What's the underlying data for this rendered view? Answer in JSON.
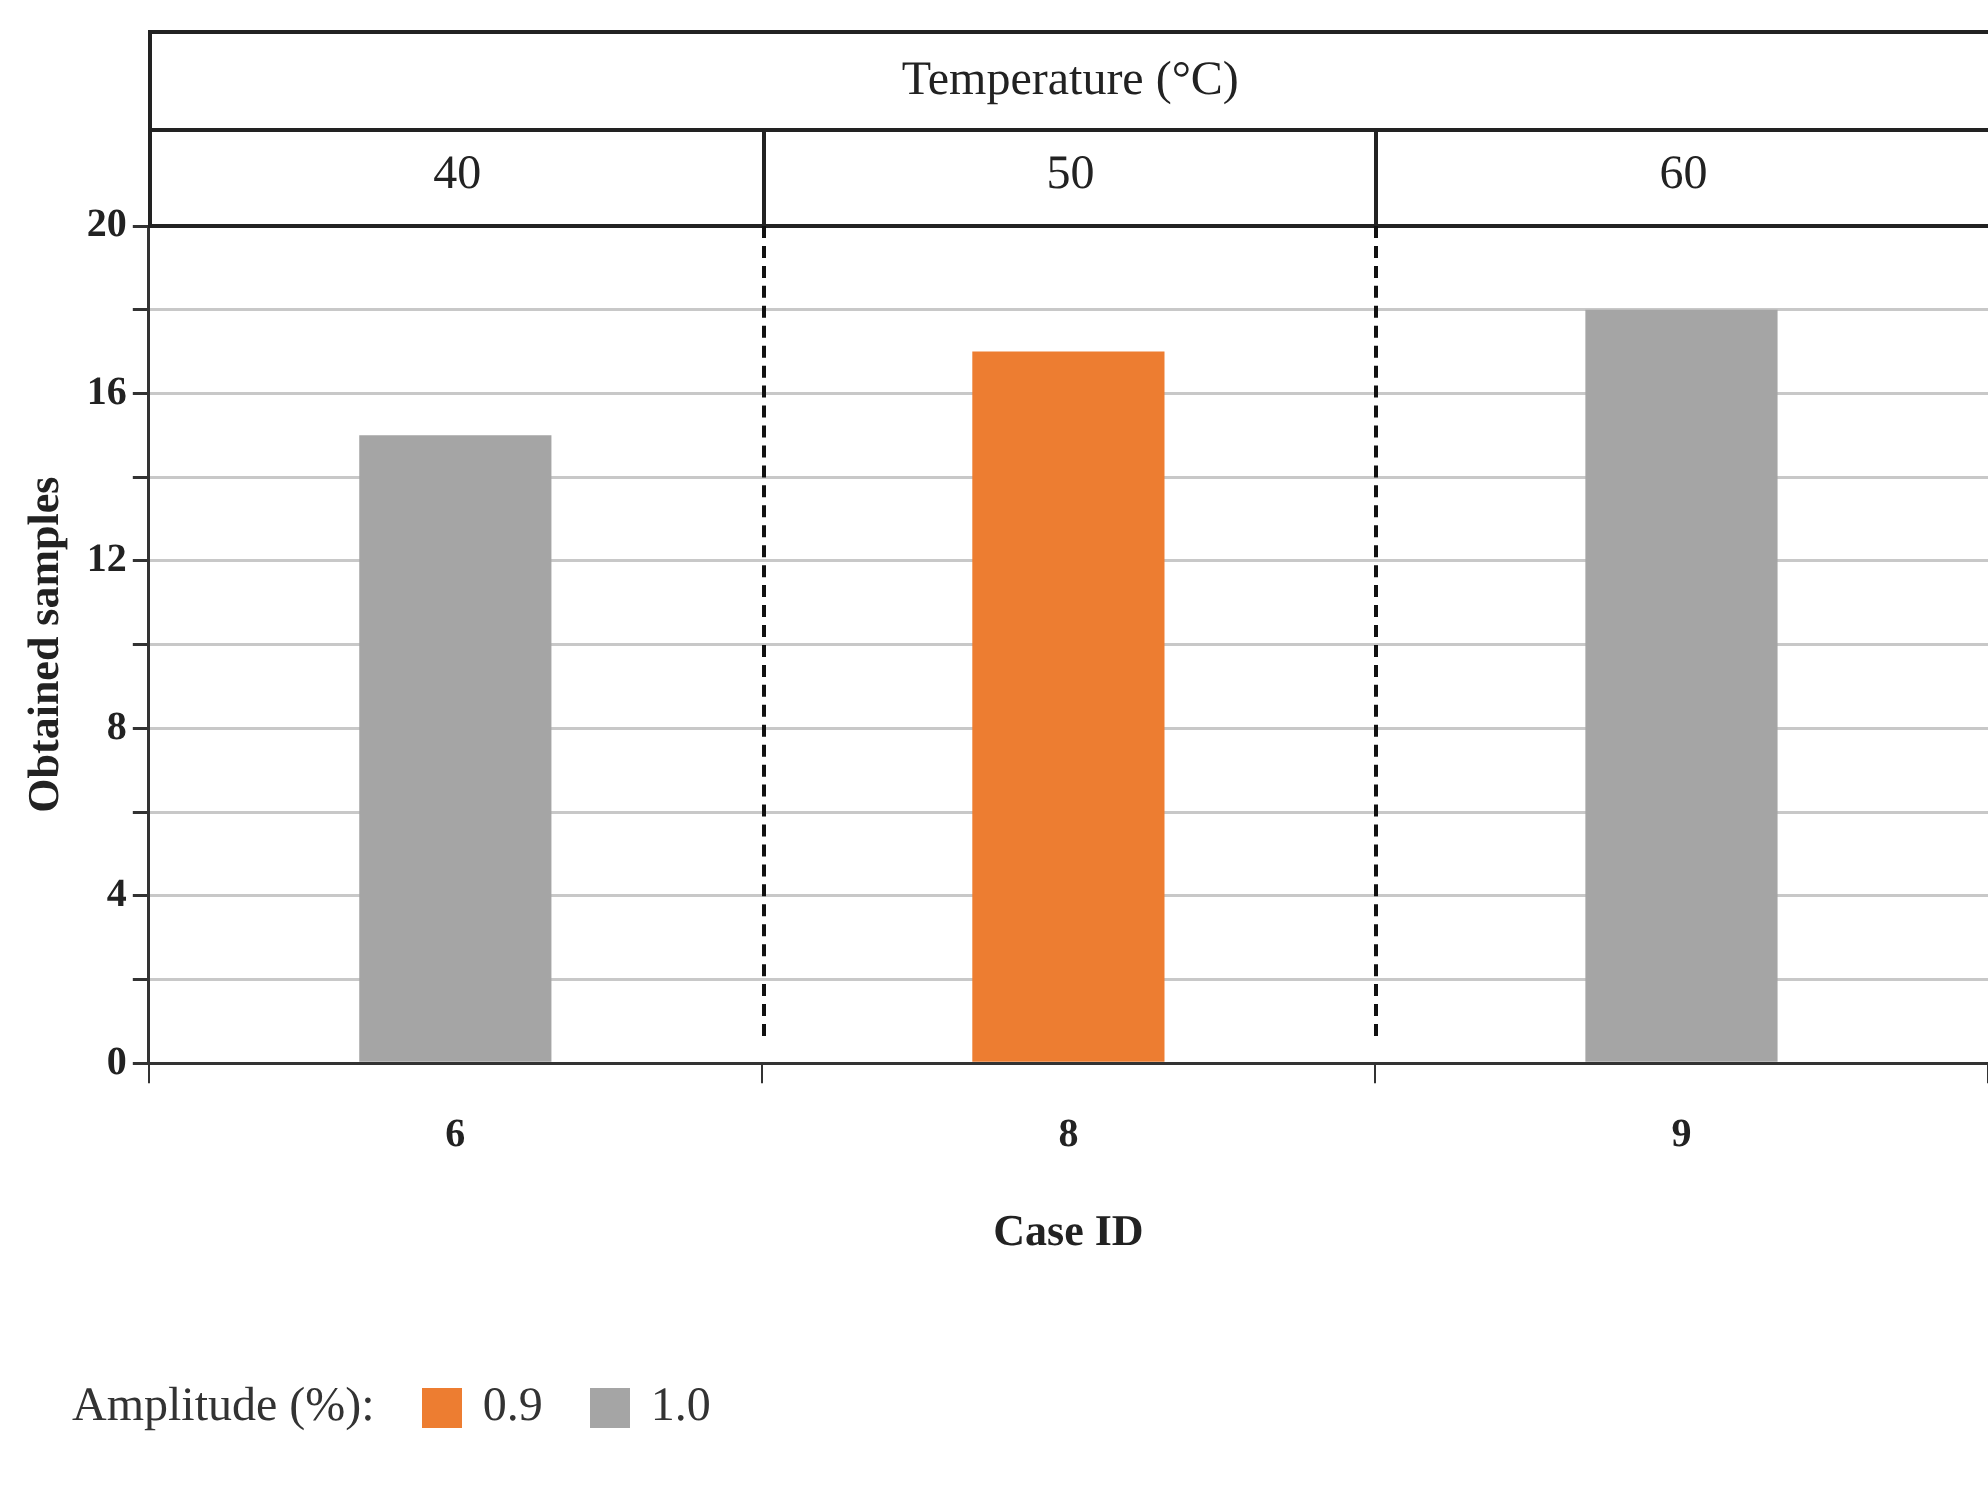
{
  "chart_data": {
    "type": "bar",
    "xlabel": "Case ID",
    "ylabel": "Obtained samples",
    "categories": [
      "6",
      "8",
      "9"
    ],
    "series": [
      {
        "name": "0.9",
        "color": "#ed7d31",
        "values": [
          null,
          17,
          null
        ]
      },
      {
        "name": "1.0",
        "color": "#a5a5a5",
        "values": [
          15,
          null,
          18
        ]
      }
    ],
    "ylim": [
      0,
      20
    ],
    "yticks": [
      0,
      {
        "value": 2,
        "label": null
      },
      4,
      {
        "value": 6,
        "label": null
      },
      8,
      {
        "value": 10,
        "label": null
      },
      12,
      {
        "value": 14,
        "label": null
      },
      16,
      {
        "value": 18,
        "label": null
      },
      20
    ],
    "grid": "y",
    "legend": "bottom left",
    "legend_title": "Amplitude (%):",
    "annotations": [
      "Temperature (°C)",
      "40",
      "50",
      "60"
    ]
  }
}
